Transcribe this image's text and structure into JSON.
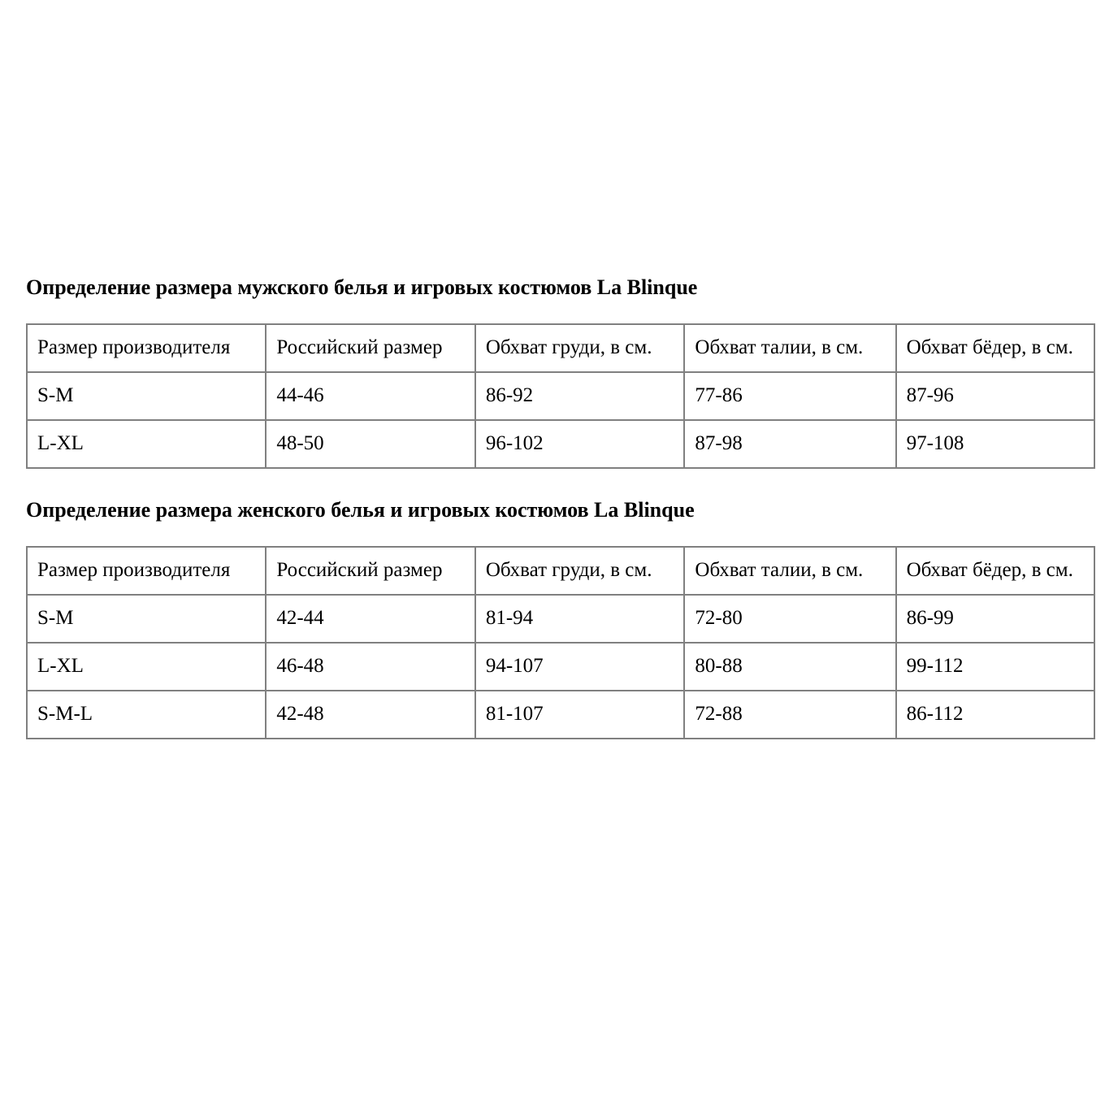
{
  "page": {
    "background_color": "#ffffff",
    "text_color": "#000000",
    "table_border_color": "#808080"
  },
  "tables": [
    {
      "title": "Определение размера мужского белья и игровых костюмов La Blinque",
      "headers": [
        "Размер производителя",
        "Российский размер",
        "Обхват груди, в см.",
        "Обхват талии, в см.",
        "Обхват бёдер, в см."
      ],
      "rows": [
        [
          "S-M",
          "44-46",
          "86-92",
          "77-86",
          "87-96"
        ],
        [
          "L-XL",
          "48-50",
          "96-102",
          "87-98",
          "97-108"
        ]
      ]
    },
    {
      "title": "Определение размера женского белья и игровых костюмов La Blinque",
      "headers": [
        "Размер производителя",
        "Российский размер",
        "Обхват груди, в см.",
        "Обхват талии, в см.",
        "Обхват бёдер, в см."
      ],
      "rows": [
        [
          "S-M",
          "42-44",
          "81-94",
          "72-80",
          "86-99"
        ],
        [
          "L-XL",
          "46-48",
          "94-107",
          "80-88",
          "99-112"
        ],
        [
          "S-M-L",
          "42-48",
          "81-107",
          "72-88",
          "86-112"
        ]
      ]
    }
  ]
}
